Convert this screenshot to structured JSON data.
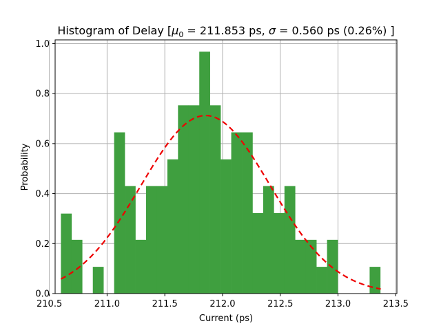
{
  "chart_data": {
    "type": "bar",
    "title": "Histogram of Delay [μ0 = 211.853 ps, σ = 0.560 ps (0.26%) ]",
    "title_parts": {
      "prefix": "Histogram of Delay [",
      "mu": "μ",
      "mu_sub": "0",
      "mu_value": " = 211.853 ps, ",
      "sigma": "σ",
      "sigma_value": " = 0.560 ps (0.26%) ]"
    },
    "xlabel": "Current (ps)",
    "ylabel": "Probability",
    "xlim": [
      210.55,
      213.51
    ],
    "ylim": [
      0,
      1.015
    ],
    "xticks": [
      210.5,
      211.0,
      211.5,
      212.0,
      212.5,
      213.0,
      213.5
    ],
    "xtick_labels": [
      "210.5",
      "211.0",
      "211.5",
      "212.0",
      "212.5",
      "213.0",
      "213.5"
    ],
    "yticks": [
      0.0,
      0.2,
      0.4,
      0.6,
      0.8,
      1.0
    ],
    "ytick_labels": [
      "0.0",
      "0.2",
      "0.4",
      "0.6",
      "0.8",
      "1.0"
    ],
    "grid": true,
    "bins": {
      "start": 210.6,
      "width": 0.0922,
      "values": [
        0.32,
        0.215,
        0.0,
        0.107,
        0.0,
        0.645,
        0.43,
        0.215,
        0.43,
        0.43,
        0.537,
        0.753,
        0.753,
        0.968,
        0.753,
        0.537,
        0.645,
        0.645,
        0.322,
        0.43,
        0.322,
        0.43,
        0.215,
        0.215,
        0.107,
        0.215,
        0.0,
        0.0,
        0.0,
        0.107
      ]
    },
    "fit_curve": {
      "name": "normal fit",
      "mu": 211.853,
      "sigma": 0.56,
      "x_range": [
        210.6,
        213.37
      ]
    },
    "colors": {
      "bars": "#3f9f3f",
      "fit": "#ee0000",
      "grid": "#b0b0b0",
      "axes": "#000000"
    }
  }
}
